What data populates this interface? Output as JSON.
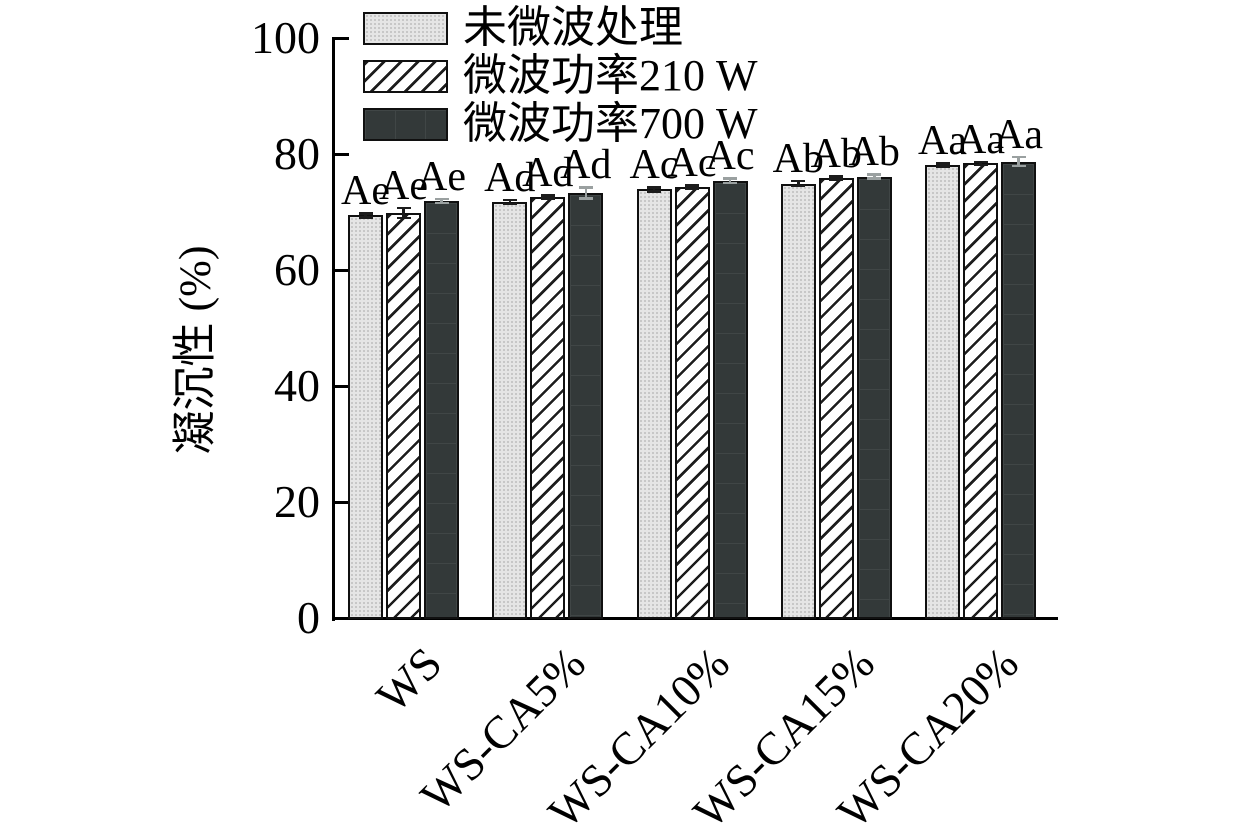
{
  "chart_data": {
    "type": "bar",
    "title": "",
    "xlabel": "",
    "ylabel": "凝沉性 (%)",
    "ylim": [
      0,
      100
    ],
    "yticks": [
      0,
      20,
      40,
      60,
      80,
      100
    ],
    "grid": false,
    "legend_position": "top-left-inside",
    "categories": [
      "WS",
      "WS-CA5%",
      "WS-CA10%",
      "WS-CA15%",
      "WS-CA20%"
    ],
    "series": [
      {
        "name": "未微波处理",
        "pattern": "dots",
        "values": [
          69.4,
          71.7,
          73.9,
          74.9,
          78.1
        ],
        "errors": [
          0.4,
          0.4,
          0.4,
          0.5,
          0.3
        ],
        "sig_labels": [
          "Ae",
          "Ad",
          "Ac",
          "Ab",
          "Aa"
        ]
      },
      {
        "name": "微波功率210 W",
        "pattern": "hatch",
        "values": [
          69.8,
          72.6,
          74.3,
          75.9,
          78.4
        ],
        "errors": [
          0.9,
          0.3,
          0.3,
          0.3,
          0.3
        ],
        "sig_labels": [
          "Ae",
          "Ad",
          "Ac",
          "Ab",
          "Aa"
        ]
      },
      {
        "name": "微波功率700 W",
        "pattern": "solid-dark",
        "values": [
          71.9,
          73.3,
          75.4,
          76.1,
          78.7
        ],
        "errors": [
          0.4,
          1.0,
          0.4,
          0.4,
          0.8
        ],
        "sig_labels": [
          "Ae",
          "Ad",
          "Ac",
          "Ab",
          "Aa"
        ]
      }
    ],
    "colors": {
      "axis": "#000000",
      "bar_light": "#e5e5e5",
      "bar_hatch_line": "#1d1d1d",
      "bar_dark": "#333939",
      "error_on_light": "#1c1c1c",
      "error_on_dark": "#9aa0a0"
    }
  }
}
